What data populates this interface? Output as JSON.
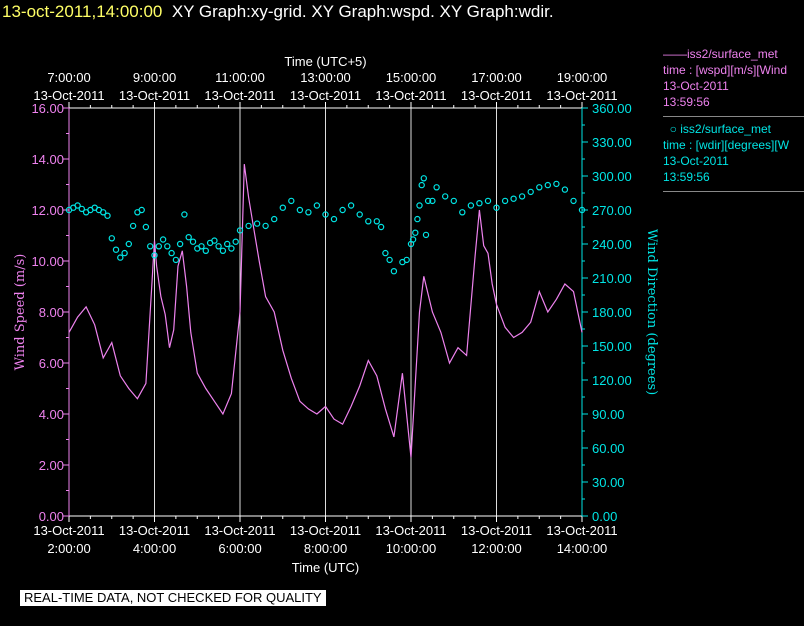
{
  "header": {
    "timestamp": "13-oct-2011,14:00:00",
    "titles": "XY Graph:xy-grid.  XY Graph:wspd.  XY Graph:wdir."
  },
  "legend": [
    {
      "line1": "iss2/surface_met",
      "line2": "time : [wspd][m/s][Wind",
      "line3": "13-Oct-2011",
      "line4": "13:59:56",
      "color": "#ee82ee",
      "marker": "line"
    },
    {
      "line1": "iss2/surface_met",
      "line2": "time : [wdir][degrees][W",
      "line3": "13-Oct-2011",
      "line4": "13:59:56",
      "color": "#00e5e5",
      "marker": "circle"
    }
  ],
  "footer": {
    "quality_note": "REAL-TIME DATA, NOT CHECKED FOR QUALITY"
  },
  "chart_data": {
    "type": "line",
    "xlabel_top": "Time (UTC+5)",
    "xlabel_bottom": "Time (UTC)",
    "ylabel_left": "Wind Speed (m/s)",
    "ylabel_right": "Wind Direction (degrees)",
    "xlim": [
      2.0,
      14.0
    ],
    "ylim_left": [
      0,
      16
    ],
    "ylim_right": [
      0,
      360
    ],
    "grid_x": true,
    "x_ticks_bottom": [
      {
        "x": 2,
        "date": "13-Oct-2011",
        "time": "2:00:00"
      },
      {
        "x": 4,
        "date": "13-Oct-2011",
        "time": "4:00:00"
      },
      {
        "x": 6,
        "date": "13-Oct-2011",
        "time": "6:00:00"
      },
      {
        "x": 8,
        "date": "13-Oct-2011",
        "time": "8:00:00"
      },
      {
        "x": 10,
        "date": "13-Oct-2011",
        "time": "10:00:00"
      },
      {
        "x": 12,
        "date": "13-Oct-2011",
        "time": "12:00:00"
      },
      {
        "x": 14,
        "date": "13-Oct-2011",
        "time": "14:00:00"
      }
    ],
    "x_ticks_top": [
      {
        "x": 2,
        "time": "7:00:00",
        "date": "13-Oct-2011"
      },
      {
        "x": 4,
        "time": "9:00:00",
        "date": "13-Oct-2011"
      },
      {
        "x": 6,
        "time": "11:00:00",
        "date": "13-Oct-2011"
      },
      {
        "x": 8,
        "time": "13:00:00",
        "date": "13-Oct-2011"
      },
      {
        "x": 10,
        "time": "15:00:00",
        "date": "13-Oct-2011"
      },
      {
        "x": 12,
        "time": "17:00:00",
        "date": "13-Oct-2011"
      },
      {
        "x": 14,
        "time": "19:00:00",
        "date": "13-Oct-2011"
      }
    ],
    "y_ticks_left": [
      "0.00",
      "2.00",
      "4.00",
      "6.00",
      "8.00",
      "10.00",
      "12.00",
      "14.00",
      "16.00"
    ],
    "y_ticks_right": [
      "0.00",
      "30.00",
      "60.00",
      "90.00",
      "120.00",
      "150.00",
      "180.00",
      "210.00",
      "240.00",
      "270.00",
      "300.00",
      "330.00",
      "360.00"
    ],
    "series": [
      {
        "name": "wspd",
        "axis": "left",
        "color": "#ee82ee",
        "style": "line",
        "x": [
          2.0,
          2.2,
          2.4,
          2.6,
          2.8,
          3.0,
          3.2,
          3.4,
          3.6,
          3.8,
          4.0,
          4.05,
          4.15,
          4.25,
          4.35,
          4.45,
          4.55,
          4.65,
          4.75,
          4.85,
          5.0,
          5.2,
          5.4,
          5.6,
          5.8,
          6.0,
          6.1,
          6.2,
          6.3,
          6.45,
          6.6,
          6.8,
          7.0,
          7.2,
          7.4,
          7.6,
          7.8,
          8.0,
          8.2,
          8.4,
          8.6,
          8.8,
          9.0,
          9.2,
          9.4,
          9.6,
          9.8,
          10.0,
          10.1,
          10.2,
          10.3,
          10.5,
          10.7,
          10.9,
          11.1,
          11.3,
          11.5,
          11.6,
          11.7,
          11.8,
          11.9,
          12.0,
          12.2,
          12.4,
          12.6,
          12.8,
          13.0,
          13.2,
          13.4,
          13.6,
          13.8,
          14.0
        ],
        "y": [
          7.2,
          7.8,
          8.2,
          7.5,
          6.2,
          6.8,
          5.5,
          5.0,
          4.6,
          5.2,
          10.8,
          9.8,
          8.6,
          7.9,
          6.6,
          7.3,
          9.8,
          10.4,
          9.0,
          7.2,
          5.6,
          5.0,
          4.5,
          4.0,
          4.8,
          8.0,
          13.8,
          12.5,
          11.5,
          10.0,
          8.6,
          8.0,
          6.5,
          5.4,
          4.5,
          4.2,
          4.0,
          4.3,
          3.8,
          3.6,
          4.3,
          5.1,
          6.1,
          5.5,
          4.2,
          3.1,
          5.6,
          2.3,
          5.2,
          8.0,
          9.4,
          8.0,
          7.2,
          6.0,
          6.6,
          6.3,
          10.2,
          12.0,
          10.6,
          10.3,
          9.1,
          8.3,
          7.4,
          7.0,
          7.2,
          7.6,
          8.8,
          8.0,
          8.5,
          9.1,
          8.8,
          7.2
        ]
      },
      {
        "name": "wdir",
        "axis": "right",
        "color": "#00e5e5",
        "style": "circle",
        "x": [
          2.0,
          2.1,
          2.2,
          2.3,
          2.4,
          2.5,
          2.6,
          2.7,
          2.8,
          2.9,
          3.0,
          3.1,
          3.2,
          3.3,
          3.4,
          3.5,
          3.6,
          3.7,
          3.8,
          3.9,
          4.0,
          4.1,
          4.2,
          4.3,
          4.4,
          4.5,
          4.6,
          4.7,
          4.8,
          4.9,
          5.0,
          5.1,
          5.2,
          5.3,
          5.4,
          5.5,
          5.6,
          5.7,
          5.8,
          5.9,
          6.0,
          6.2,
          6.4,
          6.6,
          6.8,
          7.0,
          7.2,
          7.4,
          7.6,
          7.8,
          8.0,
          8.2,
          8.4,
          8.6,
          8.8,
          9.0,
          9.2,
          9.3,
          9.4,
          9.5,
          9.6,
          9.8,
          9.9,
          10.0,
          10.05,
          10.1,
          10.15,
          10.2,
          10.25,
          10.3,
          10.35,
          10.4,
          10.5,
          10.6,
          10.8,
          11.0,
          11.2,
          11.4,
          11.6,
          11.8,
          12.0,
          12.2,
          12.4,
          12.6,
          12.8,
          13.0,
          13.2,
          13.4,
          13.6,
          13.8,
          14.0
        ],
        "y": [
          270,
          272,
          274,
          271,
          268,
          270,
          272,
          270,
          268,
          265,
          245,
          235,
          228,
          232,
          240,
          256,
          268,
          270,
          255,
          238,
          230,
          238,
          244,
          238,
          232,
          226,
          240,
          266,
          246,
          242,
          236,
          238,
          234,
          241,
          243,
          238,
          234,
          240,
          236,
          242,
          252,
          256,
          258,
          256,
          262,
          272,
          278,
          270,
          268,
          274,
          266,
          262,
          270,
          274,
          266,
          260,
          260,
          255,
          232,
          226,
          216,
          224,
          226,
          240,
          244,
          250,
          262,
          274,
          292,
          298,
          248,
          278,
          278,
          290,
          282,
          278,
          268,
          274,
          276,
          278,
          272,
          278,
          280,
          282,
          286,
          290,
          292,
          293,
          288,
          278,
          270
        ]
      }
    ]
  }
}
